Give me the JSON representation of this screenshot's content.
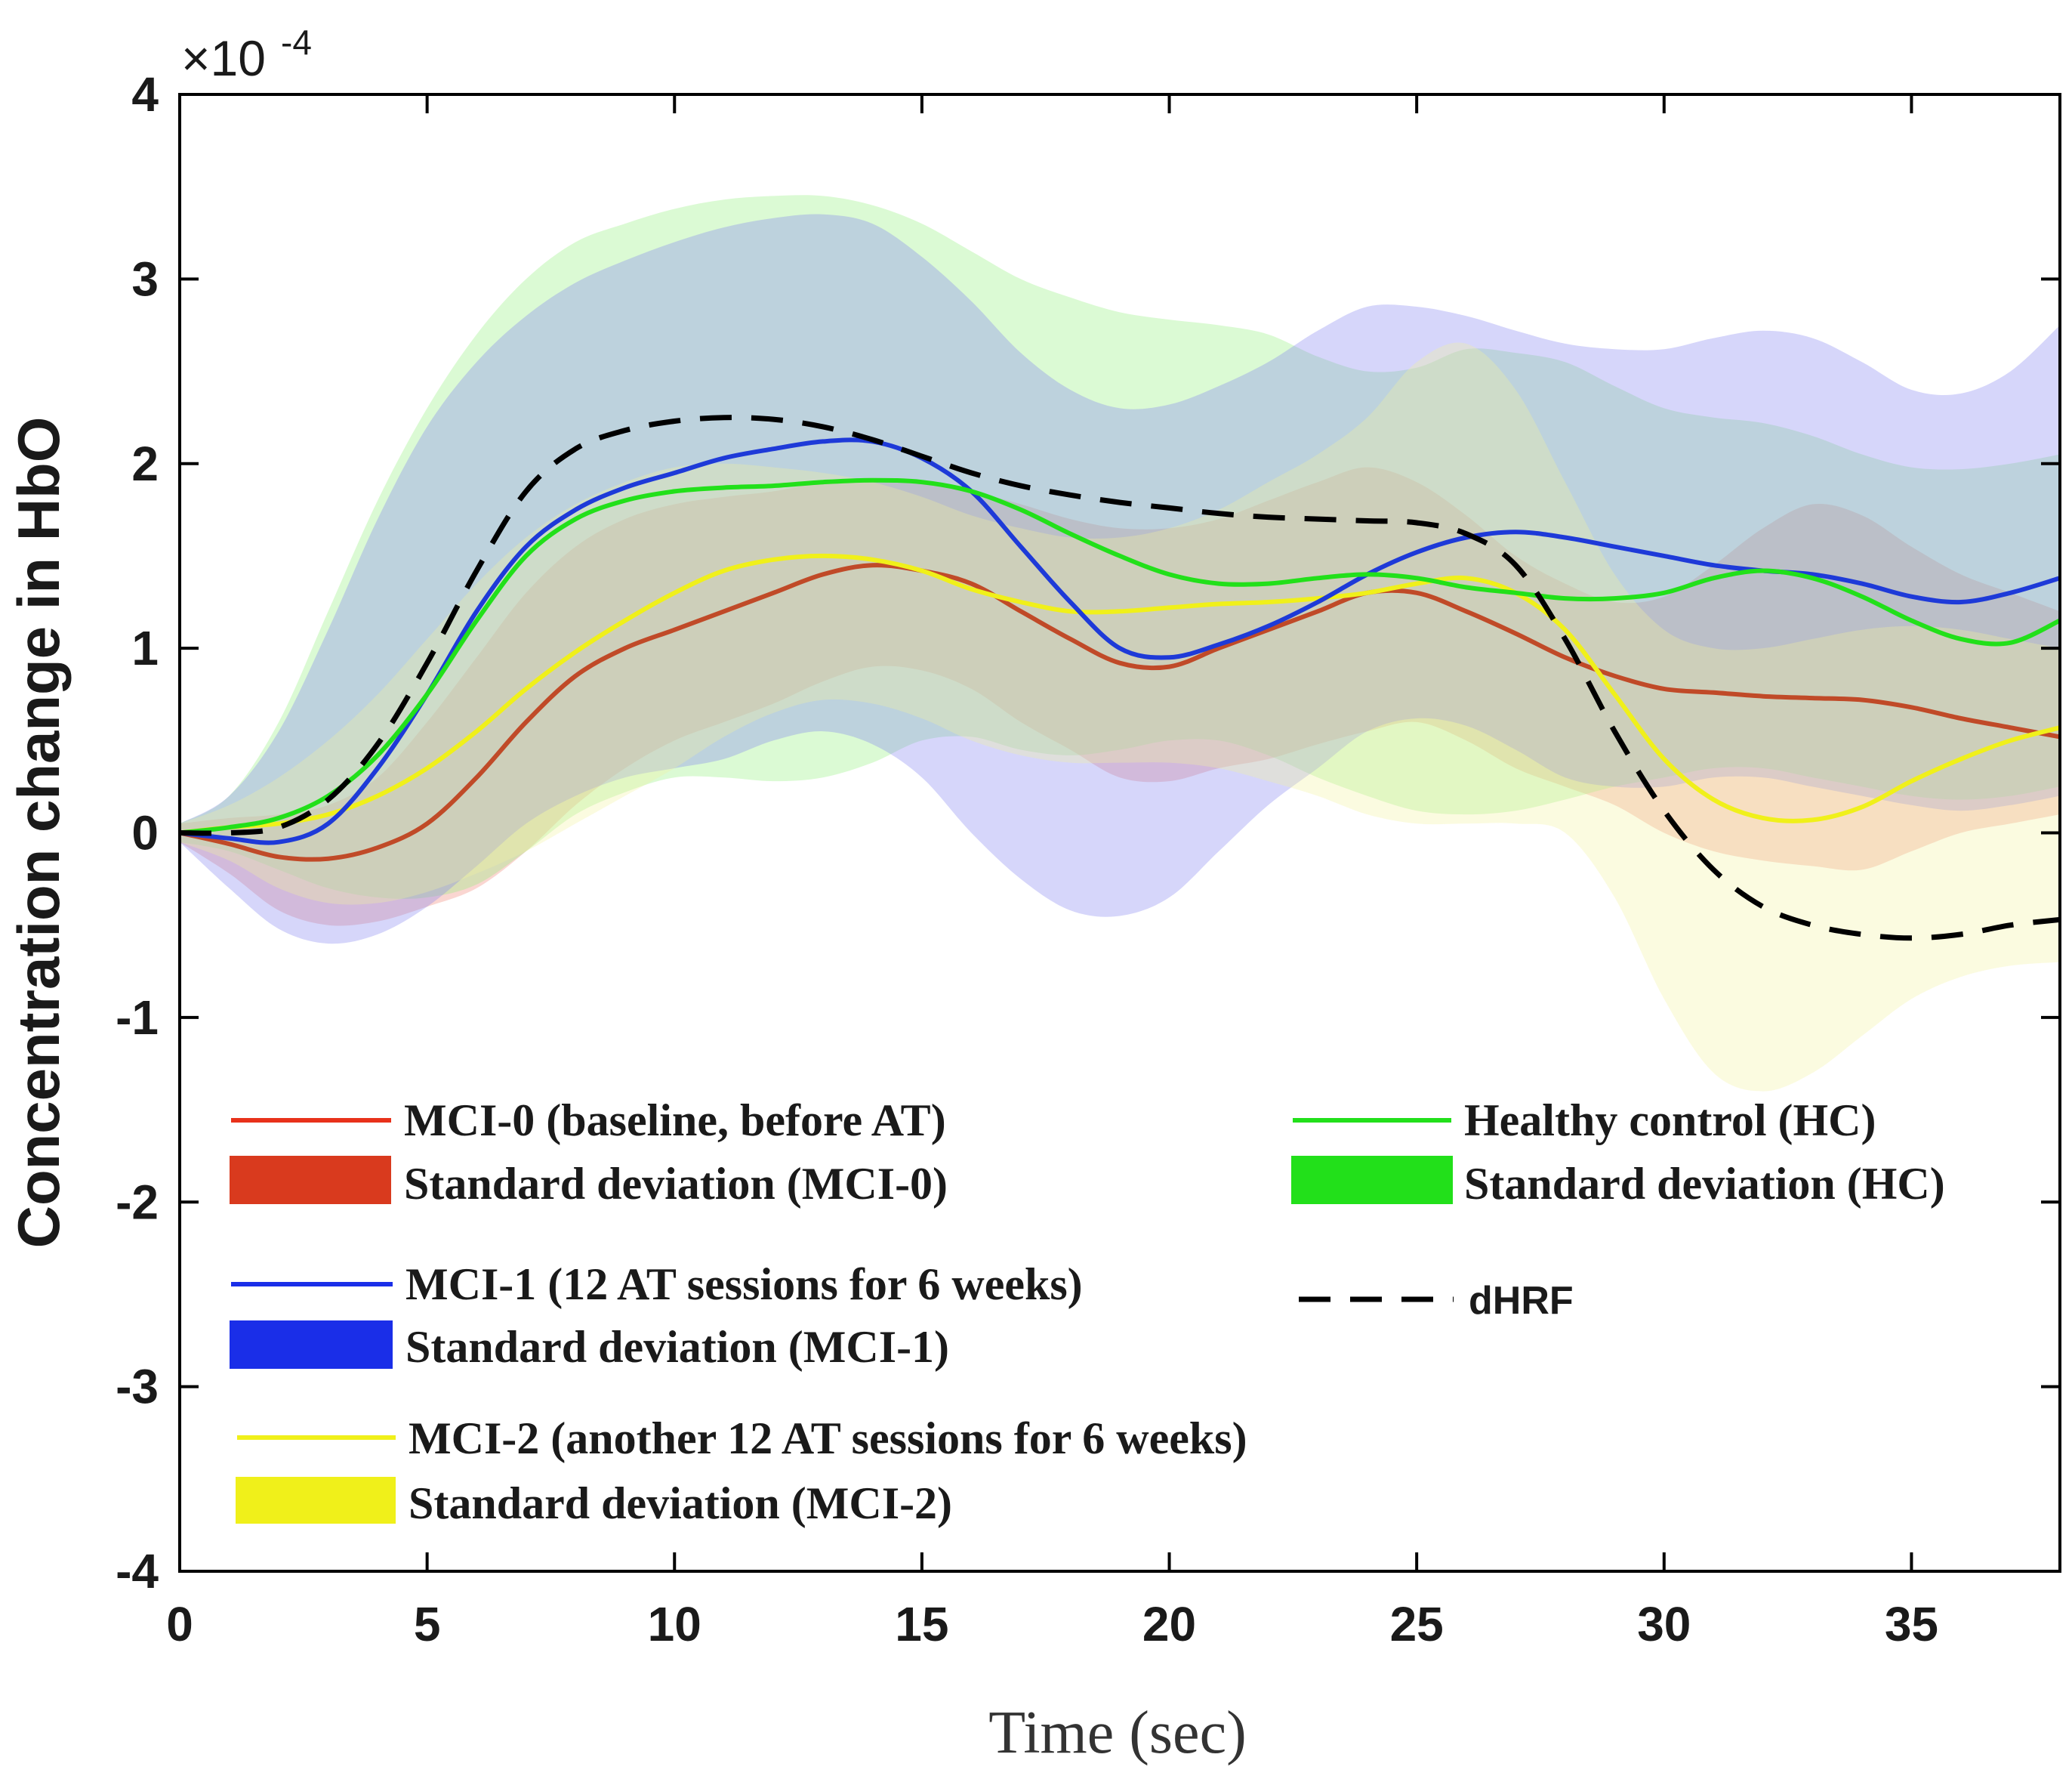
{
  "chart_data": {
    "type": "line",
    "title": "",
    "xlabel": "Time (sec)",
    "ylabel": "Concentration change in HbO",
    "multiplier": "×10",
    "multiplier_exponent": "-4",
    "xlim": [
      0,
      38
    ],
    "ylim": [
      -4,
      4
    ],
    "xticks": [
      0,
      5,
      10,
      15,
      20,
      25,
      30,
      35
    ],
    "yticks": [
      -4,
      -3,
      -2,
      -1,
      0,
      1,
      2,
      3,
      4
    ],
    "series": [
      {
        "id": "mci0",
        "name": "MCI-0 (baseline, before AT)",
        "sd_name": "Standard deviation (MCI-0)",
        "color": "#e8311a",
        "line_color": "#c04a28",
        "fill_color": "#f08070",
        "x": [
          0,
          1,
          2,
          3,
          4,
          5,
          6,
          7,
          8,
          9,
          10,
          11,
          12,
          13,
          14,
          15,
          16,
          17,
          18,
          19,
          20,
          21,
          22,
          23,
          24,
          25,
          26,
          27,
          28,
          29,
          30,
          31,
          32,
          33,
          34,
          35,
          36,
          37,
          38
        ],
        "y": [
          0,
          -0.06,
          -0.13,
          -0.14,
          -0.08,
          0.05,
          0.3,
          0.6,
          0.85,
          1.0,
          1.1,
          1.2,
          1.3,
          1.4,
          1.45,
          1.42,
          1.35,
          1.2,
          1.05,
          0.92,
          0.9,
          1.0,
          1.1,
          1.2,
          1.3,
          1.3,
          1.2,
          1.08,
          0.95,
          0.85,
          0.78,
          0.76,
          0.74,
          0.73,
          0.72,
          0.68,
          0.62,
          0.57,
          0.52
        ],
        "upper": [
          0.05,
          0.08,
          0.1,
          0.15,
          0.3,
          0.6,
          0.95,
          1.3,
          1.55,
          1.7,
          1.78,
          1.82,
          1.85,
          1.9,
          1.92,
          1.9,
          1.85,
          1.78,
          1.7,
          1.65,
          1.65,
          1.7,
          1.8,
          1.9,
          1.98,
          1.9,
          1.72,
          1.5,
          1.35,
          1.25,
          1.28,
          1.45,
          1.65,
          1.78,
          1.72,
          1.55,
          1.4,
          1.3,
          1.2
        ],
        "lower": [
          -0.05,
          -0.22,
          -0.42,
          -0.5,
          -0.48,
          -0.4,
          -0.3,
          -0.1,
          0.15,
          0.35,
          0.5,
          0.6,
          0.7,
          0.82,
          0.9,
          0.88,
          0.78,
          0.6,
          0.45,
          0.3,
          0.28,
          0.35,
          0.4,
          0.48,
          0.55,
          0.6,
          0.5,
          0.35,
          0.25,
          0.15,
          0.0,
          -0.1,
          -0.15,
          -0.18,
          -0.2,
          -0.1,
          0.0,
          0.05,
          0.1
        ]
      },
      {
        "id": "hc",
        "name": "Healthy control (HC)",
        "sd_name": "Standard deviation (HC)",
        "color": "#22e01a",
        "line_color": "#22e01a",
        "fill_color": "#8ef078",
        "x": [
          0,
          1,
          2,
          3,
          4,
          5,
          6,
          7,
          8,
          9,
          10,
          11,
          12,
          13,
          14,
          15,
          16,
          17,
          18,
          19,
          20,
          21,
          22,
          23,
          24,
          25,
          26,
          27,
          28,
          29,
          30,
          31,
          32,
          33,
          34,
          35,
          36,
          37,
          38
        ],
        "y": [
          0,
          0.03,
          0.08,
          0.2,
          0.42,
          0.75,
          1.15,
          1.5,
          1.7,
          1.8,
          1.85,
          1.87,
          1.88,
          1.9,
          1.91,
          1.9,
          1.85,
          1.75,
          1.62,
          1.5,
          1.4,
          1.35,
          1.35,
          1.38,
          1.4,
          1.38,
          1.33,
          1.3,
          1.27,
          1.27,
          1.3,
          1.38,
          1.42,
          1.38,
          1.28,
          1.15,
          1.05,
          1.03,
          1.15
        ],
        "upper": [
          0.05,
          0.2,
          0.6,
          1.2,
          1.8,
          2.3,
          2.7,
          3.0,
          3.2,
          3.3,
          3.38,
          3.43,
          3.45,
          3.45,
          3.4,
          3.3,
          3.15,
          3.0,
          2.9,
          2.82,
          2.78,
          2.75,
          2.7,
          2.58,
          2.5,
          2.52,
          2.62,
          2.6,
          2.55,
          2.42,
          2.3,
          2.25,
          2.22,
          2.15,
          2.05,
          1.98,
          1.97,
          2.0,
          2.05
        ],
        "lower": [
          -0.05,
          -0.1,
          -0.2,
          -0.3,
          -0.35,
          -0.35,
          -0.28,
          -0.1,
          0.1,
          0.22,
          0.3,
          0.3,
          0.28,
          0.3,
          0.38,
          0.5,
          0.52,
          0.45,
          0.42,
          0.45,
          0.5,
          0.5,
          0.42,
          0.3,
          0.2,
          0.12,
          0.1,
          0.12,
          0.18,
          0.25,
          0.3,
          0.35,
          0.35,
          0.3,
          0.25,
          0.2,
          0.18,
          0.2,
          0.25
        ]
      },
      {
        "id": "mci1",
        "name": "MCI-1 (12 AT sessions for 6 weeks)",
        "sd_name": "Standard deviation (MCI-1)",
        "color": "#1a2ee8",
        "line_color": "#1e3ad8",
        "fill_color": "#8080f0",
        "x": [
          0,
          1,
          2,
          3,
          4,
          5,
          6,
          7,
          8,
          9,
          10,
          11,
          12,
          13,
          14,
          15,
          16,
          17,
          18,
          19,
          20,
          21,
          22,
          23,
          24,
          25,
          26,
          27,
          28,
          29,
          30,
          31,
          32,
          33,
          34,
          35,
          36,
          37,
          38
        ],
        "y": [
          0,
          -0.03,
          -0.05,
          0.05,
          0.35,
          0.75,
          1.2,
          1.55,
          1.75,
          1.87,
          1.95,
          2.03,
          2.08,
          2.12,
          2.12,
          2.03,
          1.85,
          1.55,
          1.25,
          1.0,
          0.95,
          1.02,
          1.12,
          1.25,
          1.4,
          1.52,
          1.6,
          1.63,
          1.6,
          1.55,
          1.5,
          1.45,
          1.42,
          1.4,
          1.35,
          1.28,
          1.25,
          1.3,
          1.38
        ],
        "upper": [
          0.05,
          0.2,
          0.55,
          1.1,
          1.7,
          2.2,
          2.55,
          2.8,
          2.98,
          3.1,
          3.2,
          3.28,
          3.33,
          3.35,
          3.3,
          3.12,
          2.88,
          2.6,
          2.4,
          2.3,
          2.32,
          2.42,
          2.55,
          2.72,
          2.85,
          2.85,
          2.8,
          2.72,
          2.65,
          2.62,
          2.62,
          2.68,
          2.72,
          2.68,
          2.55,
          2.4,
          2.38,
          2.5,
          2.75
        ],
        "lower": [
          -0.05,
          -0.3,
          -0.52,
          -0.6,
          -0.55,
          -0.4,
          -0.18,
          0.05,
          0.2,
          0.3,
          0.35,
          0.4,
          0.5,
          0.55,
          0.48,
          0.3,
          0.0,
          -0.25,
          -0.42,
          -0.45,
          -0.35,
          -0.1,
          0.15,
          0.35,
          0.55,
          0.62,
          0.58,
          0.45,
          0.3,
          0.25,
          0.25,
          0.3,
          0.3,
          0.25,
          0.2,
          0.15,
          0.12,
          0.15,
          0.2
        ]
      },
      {
        "id": "mci2",
        "name": "MCI-2 (another 12 AT sessions for 6 weeks)",
        "sd_name": "Standard deviation (MCI-2)",
        "color": "#f0f01a",
        "line_color": "#f0f01a",
        "fill_color": "#f4f4a0",
        "x": [
          0,
          1,
          2,
          3,
          4,
          5,
          6,
          7,
          8,
          9,
          10,
          11,
          12,
          13,
          14,
          15,
          16,
          17,
          18,
          19,
          20,
          21,
          22,
          23,
          24,
          25,
          26,
          27,
          28,
          29,
          30,
          31,
          32,
          33,
          34,
          35,
          36,
          37,
          38
        ],
        "y": [
          0,
          0.03,
          0.05,
          0.1,
          0.2,
          0.35,
          0.55,
          0.78,
          0.98,
          1.15,
          1.3,
          1.42,
          1.48,
          1.5,
          1.48,
          1.42,
          1.32,
          1.25,
          1.2,
          1.2,
          1.22,
          1.24,
          1.25,
          1.27,
          1.3,
          1.35,
          1.38,
          1.3,
          1.1,
          0.75,
          0.4,
          0.18,
          0.08,
          0.07,
          0.14,
          0.28,
          0.4,
          0.5,
          0.57
        ],
        "upper": [
          0.05,
          0.15,
          0.3,
          0.5,
          0.75,
          1.05,
          1.35,
          1.6,
          1.78,
          1.9,
          1.98,
          2.0,
          1.98,
          1.95,
          1.9,
          1.82,
          1.72,
          1.65,
          1.6,
          1.6,
          1.65,
          1.75,
          1.9,
          2.05,
          2.25,
          2.55,
          2.65,
          2.4,
          1.9,
          1.4,
          1.1,
          1.0,
          1.0,
          1.05,
          1.1,
          1.12,
          1.1,
          1.05,
          1.0
        ],
        "lower": [
          -0.05,
          -0.15,
          -0.3,
          -0.38,
          -0.38,
          -0.32,
          -0.22,
          -0.1,
          0.05,
          0.2,
          0.35,
          0.52,
          0.65,
          0.72,
          0.7,
          0.62,
          0.5,
          0.42,
          0.38,
          0.38,
          0.38,
          0.35,
          0.28,
          0.2,
          0.1,
          0.05,
          0.05,
          0.05,
          0.0,
          -0.35,
          -0.9,
          -1.3,
          -1.4,
          -1.3,
          -1.1,
          -0.9,
          -0.78,
          -0.72,
          -0.7
        ]
      }
    ],
    "reference": {
      "id": "dhrf",
      "name": "dHRF",
      "color": "#000000",
      "style": "dashed",
      "x": [
        0,
        1,
        2,
        3,
        4,
        5,
        6,
        7,
        8,
        9,
        10,
        11,
        12,
        13,
        14,
        15,
        16,
        17,
        18,
        19,
        20,
        21,
        22,
        23,
        24,
        25,
        26,
        27,
        28,
        29,
        30,
        31,
        32,
        33,
        34,
        35,
        36,
        37,
        38
      ],
      "y": [
        0,
        0.0,
        0.03,
        0.18,
        0.48,
        0.92,
        1.42,
        1.85,
        2.08,
        2.18,
        2.23,
        2.25,
        2.24,
        2.2,
        2.13,
        2.04,
        1.95,
        1.88,
        1.83,
        1.79,
        1.76,
        1.73,
        1.71,
        1.7,
        1.69,
        1.68,
        1.62,
        1.45,
        1.05,
        0.55,
        0.12,
        -0.2,
        -0.4,
        -0.5,
        -0.55,
        -0.57,
        -0.55,
        -0.5,
        -0.47
      ]
    }
  }
}
